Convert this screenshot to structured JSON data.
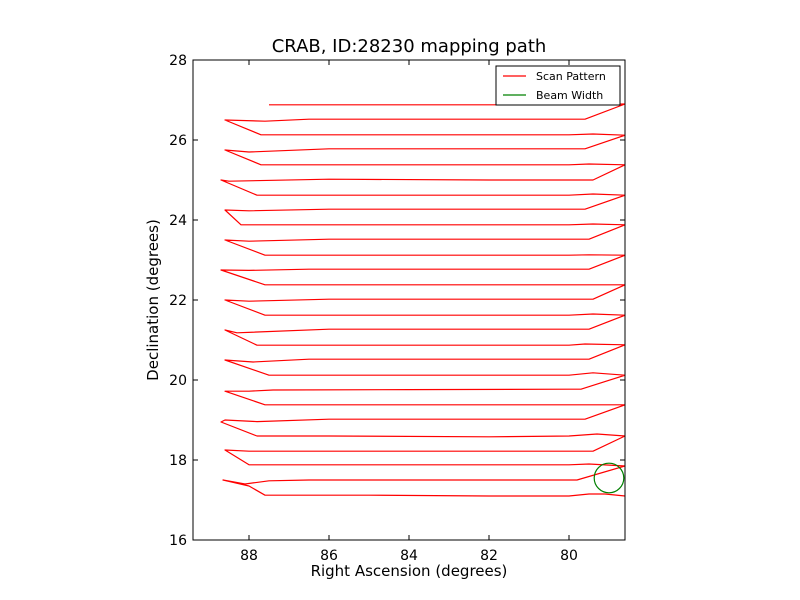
{
  "chart_data": {
    "type": "line",
    "title": "CRAB, ID:28230 mapping path",
    "xlabel": "Right Ascension (degrees)",
    "ylabel": "Declination (degrees)",
    "xlim": [
      89.4,
      78.6
    ],
    "ylim": [
      16,
      28
    ],
    "x_reversed": true,
    "xticks": [
      88,
      86,
      84,
      82,
      80
    ],
    "yticks": [
      16,
      18,
      20,
      22,
      24,
      26,
      28
    ],
    "xtick_labels": [
      "88",
      "86",
      "84",
      "82",
      "80"
    ],
    "ytick_labels": [
      "16",
      "18",
      "20",
      "22",
      "24",
      "26",
      "28"
    ],
    "grid": false,
    "legend": {
      "placement": "top-right",
      "entries": [
        {
          "label": "Scan Pattern",
          "color": "#ff0000"
        },
        {
          "label": "Beam Width",
          "color": "#008000"
        }
      ]
    },
    "series": [
      {
        "name": "Scan Pattern",
        "color": "#ff0000",
        "points": [
          [
            78.6,
            17.1
          ],
          [
            79.1,
            17.15
          ],
          [
            79.5,
            17.15
          ],
          [
            80.0,
            17.1
          ],
          [
            82.0,
            17.1
          ],
          [
            85.0,
            17.12
          ],
          [
            87.6,
            17.12
          ],
          [
            88.0,
            17.35
          ],
          [
            88.65,
            17.5
          ],
          [
            88.1,
            17.4
          ],
          [
            87.5,
            17.48
          ],
          [
            86.5,
            17.5
          ],
          [
            84.0,
            17.5
          ],
          [
            82.0,
            17.5
          ],
          [
            79.8,
            17.5
          ],
          [
            78.6,
            17.85
          ],
          [
            79.5,
            17.9
          ],
          [
            80.0,
            17.88
          ],
          [
            82.0,
            17.88
          ],
          [
            86.0,
            17.88
          ],
          [
            88.0,
            17.88
          ],
          [
            88.6,
            18.25
          ],
          [
            88.0,
            18.22
          ],
          [
            87.0,
            18.22
          ],
          [
            82.0,
            18.22
          ],
          [
            80.0,
            18.22
          ],
          [
            79.4,
            18.22
          ],
          [
            78.6,
            18.6
          ],
          [
            79.3,
            18.65
          ],
          [
            80.0,
            18.6
          ],
          [
            82.0,
            18.58
          ],
          [
            86.0,
            18.6
          ],
          [
            87.8,
            18.6
          ],
          [
            88.7,
            18.95
          ],
          [
            88.6,
            19.0
          ],
          [
            87.8,
            18.96
          ],
          [
            86.0,
            19.02
          ],
          [
            82.0,
            19.02
          ],
          [
            79.6,
            19.02
          ],
          [
            78.6,
            19.38
          ],
          [
            80.0,
            19.38
          ],
          [
            84.0,
            19.38
          ],
          [
            87.6,
            19.38
          ],
          [
            88.6,
            19.72
          ],
          [
            88.0,
            19.72
          ],
          [
            87.4,
            19.75
          ],
          [
            84.0,
            19.76
          ],
          [
            80.0,
            19.77
          ],
          [
            79.7,
            19.77
          ],
          [
            78.6,
            20.12
          ],
          [
            79.4,
            20.18
          ],
          [
            80.0,
            20.12
          ],
          [
            82.0,
            20.12
          ],
          [
            87.5,
            20.12
          ],
          [
            88.6,
            20.5
          ],
          [
            87.9,
            20.45
          ],
          [
            86.5,
            20.52
          ],
          [
            84.0,
            20.52
          ],
          [
            79.5,
            20.52
          ],
          [
            78.6,
            20.88
          ],
          [
            79.6,
            20.9
          ],
          [
            80.0,
            20.87
          ],
          [
            84.0,
            20.87
          ],
          [
            87.8,
            20.87
          ],
          [
            88.6,
            21.25
          ],
          [
            88.3,
            21.18
          ],
          [
            86.0,
            21.27
          ],
          [
            82.0,
            21.27
          ],
          [
            79.5,
            21.27
          ],
          [
            78.6,
            21.62
          ],
          [
            79.4,
            21.65
          ],
          [
            80.0,
            21.62
          ],
          [
            84.0,
            21.62
          ],
          [
            87.6,
            21.62
          ],
          [
            88.6,
            22.0
          ],
          [
            88.0,
            21.97
          ],
          [
            86.0,
            22.02
          ],
          [
            84.0,
            22.02
          ],
          [
            79.4,
            22.02
          ],
          [
            78.6,
            22.38
          ],
          [
            80.0,
            22.38
          ],
          [
            84.0,
            22.38
          ],
          [
            87.6,
            22.38
          ],
          [
            88.7,
            22.75
          ],
          [
            88.0,
            22.74
          ],
          [
            86.5,
            22.77
          ],
          [
            84.0,
            22.77
          ],
          [
            80.0,
            22.77
          ],
          [
            79.5,
            22.77
          ],
          [
            78.6,
            23.12
          ],
          [
            79.5,
            23.13
          ],
          [
            80.0,
            23.12
          ],
          [
            84.0,
            23.12
          ],
          [
            87.6,
            23.12
          ],
          [
            88.6,
            23.5
          ],
          [
            88.0,
            23.47
          ],
          [
            86.0,
            23.52
          ],
          [
            82.0,
            23.52
          ],
          [
            79.5,
            23.52
          ],
          [
            78.6,
            23.88
          ],
          [
            79.4,
            23.9
          ],
          [
            80.0,
            23.88
          ],
          [
            84.0,
            23.88
          ],
          [
            88.2,
            23.88
          ],
          [
            88.6,
            24.25
          ],
          [
            88.0,
            24.23
          ],
          [
            86.0,
            24.27
          ],
          [
            82.0,
            24.27
          ],
          [
            79.6,
            24.27
          ],
          [
            78.6,
            24.62
          ],
          [
            79.4,
            24.65
          ],
          [
            80.0,
            24.62
          ],
          [
            84.0,
            24.62
          ],
          [
            87.8,
            24.62
          ],
          [
            88.7,
            25.0
          ],
          [
            88.5,
            24.97
          ],
          [
            86.0,
            25.02
          ],
          [
            82.0,
            25.0
          ],
          [
            79.4,
            25.0
          ],
          [
            78.6,
            25.38
          ],
          [
            79.5,
            25.4
          ],
          [
            80.0,
            25.38
          ],
          [
            84.0,
            25.38
          ],
          [
            87.7,
            25.38
          ],
          [
            88.6,
            25.75
          ],
          [
            88.0,
            25.7
          ],
          [
            86.0,
            25.78
          ],
          [
            82.0,
            25.78
          ],
          [
            79.6,
            25.78
          ],
          [
            78.6,
            26.12
          ],
          [
            79.4,
            26.15
          ],
          [
            80.0,
            26.13
          ],
          [
            84.0,
            26.13
          ],
          [
            87.7,
            26.13
          ],
          [
            88.6,
            26.5
          ],
          [
            87.6,
            26.47
          ],
          [
            86.5,
            26.52
          ],
          [
            82.0,
            26.52
          ],
          [
            79.6,
            26.52
          ],
          [
            78.6,
            26.9
          ],
          [
            80.0,
            26.88
          ],
          [
            84.0,
            26.88
          ],
          [
            87.5,
            26.88
          ]
        ]
      },
      {
        "name": "Beam Width",
        "color": "#008000",
        "shape": "circle",
        "center": [
          79.0,
          17.55
        ],
        "radius": 0.37
      }
    ]
  }
}
